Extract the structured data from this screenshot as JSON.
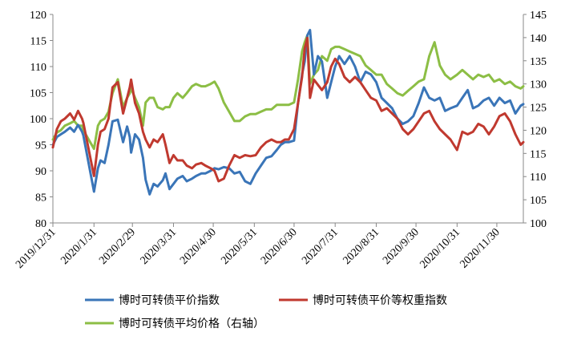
{
  "chart_data": {
    "type": "line",
    "title": "",
    "xlabel": "",
    "ylabel": "",
    "y2label": "",
    "ylim": [
      80,
      120
    ],
    "y2lim": [
      100,
      145
    ],
    "yticks": [
      80,
      85,
      90,
      95,
      100,
      105,
      110,
      115,
      120
    ],
    "y2ticks": [
      100,
      105,
      110,
      115,
      120,
      125,
      130,
      135,
      140,
      145
    ],
    "xlim": [
      "2019-12-31",
      "2020-12-20"
    ],
    "xticks": [
      "2019/12/31",
      "2020/1/31",
      "2020/2/29",
      "2020/3/31",
      "2020/4/30",
      "2020/5/31",
      "2020/6/30",
      "2020/7/31",
      "2020/8/31",
      "2020/9/30",
      "2020/10/31",
      "2020/11/30"
    ],
    "xtick_dates": [
      "2019-12-31",
      "2020-01-31",
      "2020-02-29",
      "2020-03-31",
      "2020-04-30",
      "2020-05-31",
      "2020-06-30",
      "2020-07-31",
      "2020-08-31",
      "2020-09-30",
      "2020-10-31",
      "2020-11-30"
    ],
    "grid": false,
    "legend_position": "bottom",
    "series": [
      {
        "name": "博时可转债平价指数",
        "axis": "left",
        "color": "#3a75b8",
        "x": [
          "2019-12-31",
          "2020-01-03",
          "2020-01-06",
          "2020-01-09",
          "2020-01-13",
          "2020-01-16",
          "2020-01-19",
          "2020-01-22",
          "2020-01-23",
          "2020-01-31",
          "2020-02-03",
          "2020-02-05",
          "2020-02-08",
          "2020-02-11",
          "2020-02-14",
          "2020-02-18",
          "2020-02-22",
          "2020-02-25",
          "2020-02-27",
          "2020-02-28",
          "2020-03-02",
          "2020-03-05",
          "2020-03-08",
          "2020-03-10",
          "2020-03-13",
          "2020-03-16",
          "2020-03-19",
          "2020-03-23",
          "2020-03-25",
          "2020-03-28",
          "2020-03-31",
          "2020-04-03",
          "2020-04-07",
          "2020-04-10",
          "2020-04-14",
          "2020-04-17",
          "2020-04-21",
          "2020-04-24",
          "2020-04-28",
          "2020-05-01",
          "2020-05-04",
          "2020-05-08",
          "2020-05-12",
          "2020-05-16",
          "2020-05-20",
          "2020-05-24",
          "2020-05-28",
          "2020-06-01",
          "2020-06-05",
          "2020-06-09",
          "2020-06-13",
          "2020-06-17",
          "2020-06-20",
          "2020-06-23",
          "2020-06-26",
          "2020-06-30",
          "2020-07-03",
          "2020-07-06",
          "2020-07-08",
          "2020-07-10",
          "2020-07-12",
          "2020-07-15",
          "2020-07-18",
          "2020-07-21",
          "2020-07-25",
          "2020-07-28",
          "2020-07-31",
          "2020-08-03",
          "2020-08-07",
          "2020-08-11",
          "2020-08-15",
          "2020-08-19",
          "2020-08-23",
          "2020-08-27",
          "2020-08-31",
          "2020-09-04",
          "2020-09-08",
          "2020-09-12",
          "2020-09-16",
          "2020-09-20",
          "2020-09-24",
          "2020-09-28",
          "2020-10-02",
          "2020-10-06",
          "2020-10-10",
          "2020-10-14",
          "2020-10-18",
          "2020-10-22",
          "2020-10-26",
          "2020-10-31",
          "2020-11-04",
          "2020-11-08",
          "2020-11-12",
          "2020-11-16",
          "2020-11-20",
          "2020-11-24",
          "2020-11-28",
          "2020-12-02",
          "2020-12-06",
          "2020-12-10",
          "2020-12-14",
          "2020-12-18",
          "2020-12-20"
        ],
        "values": [
          95,
          96.5,
          97,
          97.5,
          98.3,
          97.5,
          98.8,
          97.5,
          96.8,
          86,
          90.5,
          92,
          91.5,
          95,
          99.5,
          99.8,
          95.5,
          98.5,
          96.5,
          93.5,
          97,
          96,
          92.5,
          88.3,
          85.5,
          87.5,
          87,
          88.2,
          89.5,
          86.5,
          87.5,
          88.5,
          89,
          88,
          88.5,
          89,
          89.5,
          89.5,
          90,
          90.5,
          90.3,
          90.7,
          90.5,
          89.5,
          89.8,
          88,
          87.5,
          89.5,
          91,
          92.5,
          92.8,
          94,
          95,
          95.5,
          95.5,
          95.8,
          103,
          108.5,
          111,
          116,
          117,
          108.5,
          112,
          111,
          104,
          107,
          110,
          112,
          110.5,
          112,
          110,
          107,
          109,
          108.5,
          107,
          104,
          103,
          102,
          100,
          99,
          99.5,
          100.5,
          103,
          106,
          104,
          103.5,
          104,
          101.5,
          102,
          102.5,
          104,
          105.5,
          102,
          102.5,
          103.5,
          104,
          102.5,
          104,
          103,
          103.5,
          101,
          102.5,
          102.8
        ]
      },
      {
        "name": "博时可转债平价等权重指数",
        "axis": "left",
        "color": "#c0392f",
        "x": [
          "2019-12-31",
          "2020-01-03",
          "2020-01-06",
          "2020-01-09",
          "2020-01-13",
          "2020-01-16",
          "2020-01-19",
          "2020-01-22",
          "2020-01-23",
          "2020-01-31",
          "2020-02-03",
          "2020-02-05",
          "2020-02-08",
          "2020-02-11",
          "2020-02-14",
          "2020-02-18",
          "2020-02-22",
          "2020-02-25",
          "2020-02-27",
          "2020-02-28",
          "2020-03-02",
          "2020-03-05",
          "2020-03-08",
          "2020-03-10",
          "2020-03-13",
          "2020-03-16",
          "2020-03-19",
          "2020-03-23",
          "2020-03-25",
          "2020-03-28",
          "2020-03-31",
          "2020-04-03",
          "2020-04-07",
          "2020-04-10",
          "2020-04-14",
          "2020-04-17",
          "2020-04-21",
          "2020-04-24",
          "2020-04-28",
          "2020-05-01",
          "2020-05-04",
          "2020-05-08",
          "2020-05-12",
          "2020-05-16",
          "2020-05-20",
          "2020-05-24",
          "2020-05-28",
          "2020-06-01",
          "2020-06-05",
          "2020-06-09",
          "2020-06-13",
          "2020-06-17",
          "2020-06-20",
          "2020-06-23",
          "2020-06-26",
          "2020-06-30",
          "2020-07-03",
          "2020-07-06",
          "2020-07-08",
          "2020-07-10",
          "2020-07-12",
          "2020-07-15",
          "2020-07-18",
          "2020-07-21",
          "2020-07-25",
          "2020-07-28",
          "2020-07-31",
          "2020-08-03",
          "2020-08-07",
          "2020-08-11",
          "2020-08-15",
          "2020-08-19",
          "2020-08-23",
          "2020-08-27",
          "2020-08-31",
          "2020-09-04",
          "2020-09-08",
          "2020-09-12",
          "2020-09-16",
          "2020-09-20",
          "2020-09-24",
          "2020-09-28",
          "2020-10-02",
          "2020-10-06",
          "2020-10-10",
          "2020-10-14",
          "2020-10-18",
          "2020-10-22",
          "2020-10-26",
          "2020-10-31",
          "2020-11-04",
          "2020-11-08",
          "2020-11-12",
          "2020-11-16",
          "2020-11-20",
          "2020-11-24",
          "2020-11-28",
          "2020-12-02",
          "2020-12-06",
          "2020-12-10",
          "2020-12-14",
          "2020-12-18",
          "2020-12-20"
        ],
        "values": [
          94.5,
          98,
          99.5,
          100,
          101,
          99.8,
          101.5,
          100,
          99.2,
          89,
          95,
          97.5,
          98,
          100,
          106,
          107,
          101,
          104,
          106,
          107.5,
          103,
          101,
          97.5,
          96,
          94.5,
          96,
          95.5,
          97,
          95,
          91.5,
          93,
          92,
          92,
          91,
          90.5,
          91.2,
          91.5,
          91,
          90.5,
          90,
          88,
          88.5,
          91,
          93,
          92.5,
          93,
          92.8,
          93,
          94.5,
          95.5,
          96,
          95.5,
          95.5,
          96,
          96,
          98,
          103,
          108,
          113.5,
          115.5,
          104,
          107.5,
          106.5,
          105.5,
          107,
          110,
          111.5,
          110.5,
          108,
          107,
          108,
          107,
          105.5,
          104,
          103.5,
          101.5,
          102,
          101,
          100,
          98,
          97,
          98,
          99.5,
          101,
          101.5,
          99.5,
          98,
          97,
          96,
          94,
          97.5,
          97,
          97.5,
          99,
          98.5,
          97,
          98.5,
          100.5,
          101,
          99.5,
          97,
          95,
          95.5
        ]
      },
      {
        "name": "博时可转债平均价格（右轴）",
        "axis": "right",
        "color": "#8cbe45",
        "x": [
          "2019-12-31",
          "2020-01-03",
          "2020-01-06",
          "2020-01-09",
          "2020-01-13",
          "2020-01-16",
          "2020-01-19",
          "2020-01-22",
          "2020-01-23",
          "2020-01-31",
          "2020-02-03",
          "2020-02-05",
          "2020-02-08",
          "2020-02-11",
          "2020-02-14",
          "2020-02-18",
          "2020-02-22",
          "2020-02-25",
          "2020-02-27",
          "2020-02-28",
          "2020-03-02",
          "2020-03-05",
          "2020-03-08",
          "2020-03-10",
          "2020-03-13",
          "2020-03-16",
          "2020-03-19",
          "2020-03-23",
          "2020-03-25",
          "2020-03-28",
          "2020-03-31",
          "2020-04-03",
          "2020-04-07",
          "2020-04-10",
          "2020-04-14",
          "2020-04-17",
          "2020-04-21",
          "2020-04-24",
          "2020-04-28",
          "2020-05-01",
          "2020-05-04",
          "2020-05-08",
          "2020-05-12",
          "2020-05-16",
          "2020-05-20",
          "2020-05-24",
          "2020-05-28",
          "2020-06-01",
          "2020-06-05",
          "2020-06-09",
          "2020-06-13",
          "2020-06-17",
          "2020-06-20",
          "2020-06-23",
          "2020-06-26",
          "2020-06-30",
          "2020-07-03",
          "2020-07-06",
          "2020-07-08",
          "2020-07-10",
          "2020-07-12",
          "2020-07-15",
          "2020-07-18",
          "2020-07-21",
          "2020-07-25",
          "2020-07-28",
          "2020-07-31",
          "2020-08-03",
          "2020-08-07",
          "2020-08-11",
          "2020-08-15",
          "2020-08-19",
          "2020-08-23",
          "2020-08-27",
          "2020-08-31",
          "2020-09-04",
          "2020-09-08",
          "2020-09-12",
          "2020-09-16",
          "2020-09-20",
          "2020-09-24",
          "2020-09-28",
          "2020-10-02",
          "2020-10-06",
          "2020-10-10",
          "2020-10-14",
          "2020-10-18",
          "2020-10-22",
          "2020-10-26",
          "2020-10-31",
          "2020-11-04",
          "2020-11-08",
          "2020-11-12",
          "2020-11-16",
          "2020-11-20",
          "2020-11-24",
          "2020-11-28",
          "2020-12-02",
          "2020-12-06",
          "2020-12-10",
          "2020-12-14",
          "2020-12-18",
          "2020-12-20"
        ],
        "values": [
          118,
          119.5,
          120,
          121,
          121.5,
          122,
          121,
          121,
          120,
          116,
          121,
          122,
          122.5,
          124,
          128,
          131,
          125,
          127,
          128,
          129,
          127,
          125,
          121,
          126,
          127,
          127,
          125,
          124.5,
          125,
          125,
          127,
          128,
          127,
          128,
          129.5,
          130,
          129.5,
          129.5,
          130,
          130.5,
          129,
          126,
          124,
          122,
          122,
          123,
          123.5,
          123.5,
          124,
          124.5,
          124.5,
          125.5,
          125.5,
          125.5,
          125.5,
          126,
          131,
          137,
          139,
          140.5,
          130,
          132,
          133,
          136,
          135,
          137.5,
          138,
          138,
          137.5,
          137,
          136.5,
          136,
          134,
          133,
          132,
          132,
          130,
          129,
          128,
          127.5,
          128.5,
          129.5,
          130.5,
          131,
          136,
          139,
          134,
          132,
          131,
          132,
          133,
          132,
          131,
          132,
          131.5,
          132,
          130.5,
          131,
          130,
          130.5,
          129.5,
          129,
          129.5
        ]
      }
    ]
  }
}
